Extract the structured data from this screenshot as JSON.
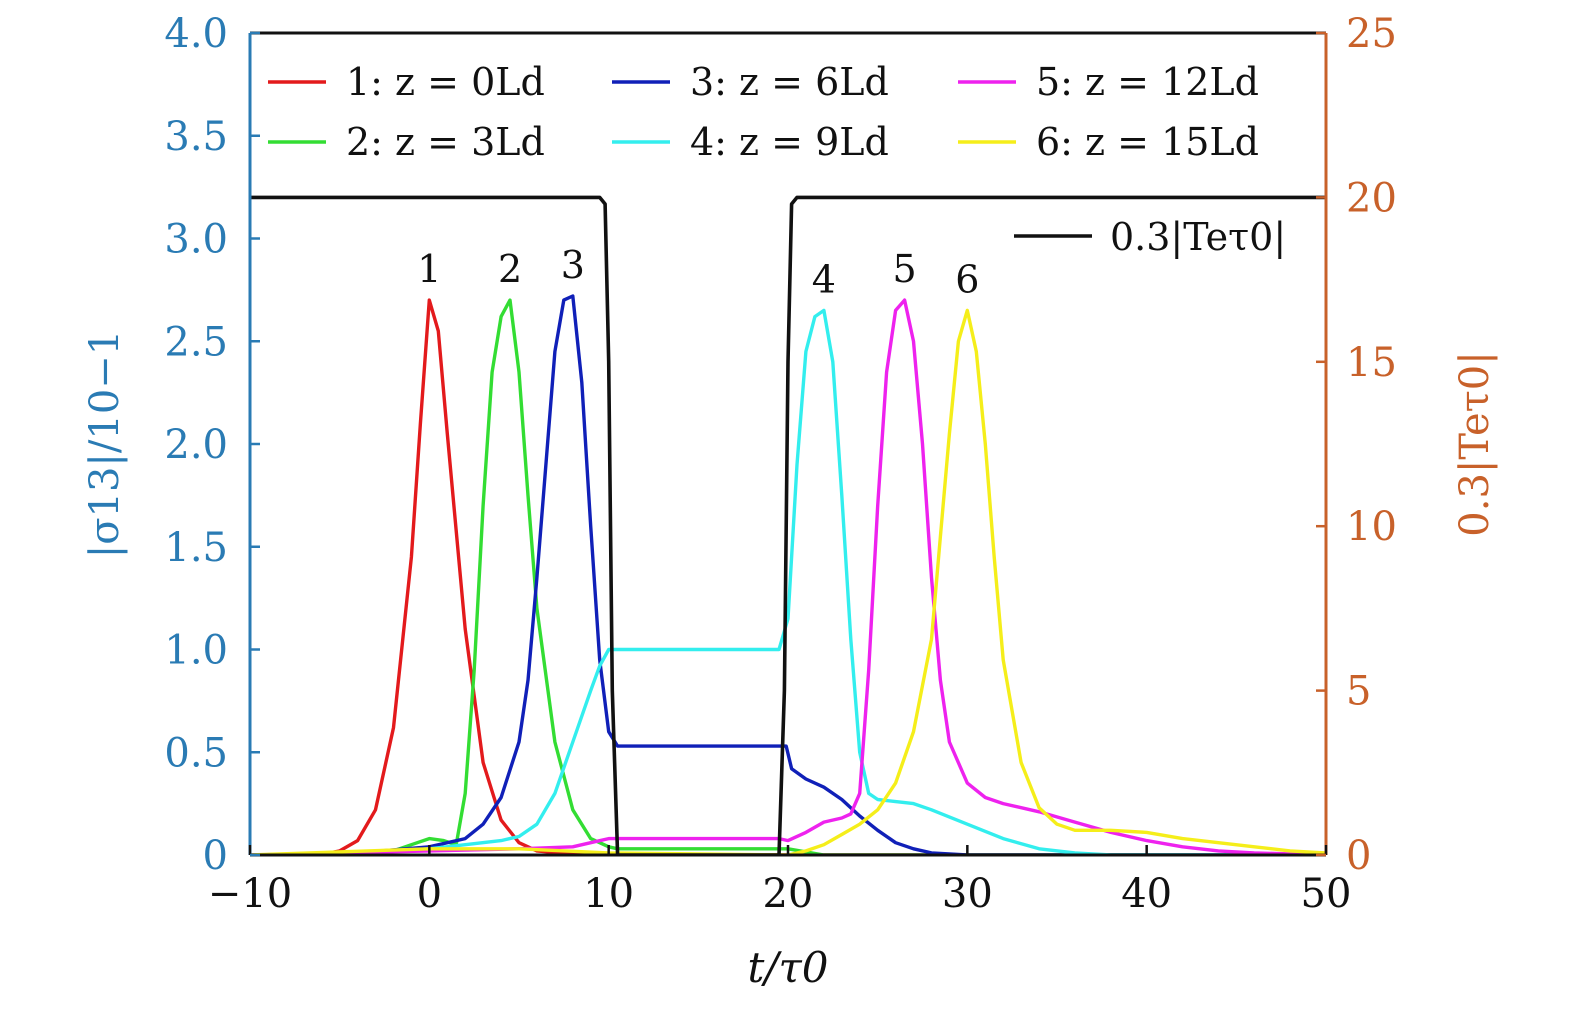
{
  "chart_data": {
    "type": "line",
    "x_axis": {
      "label": "t/τ0",
      "range": [
        -10,
        50
      ],
      "ticks": [
        -10,
        0,
        10,
        20,
        30,
        40,
        50
      ],
      "tick_labels": [
        "−10",
        "0",
        "10",
        "20",
        "30",
        "40",
        "50"
      ]
    },
    "y_axis_left": {
      "label": "|σ13|/10−1",
      "color": "#2a7bb4",
      "range": [
        0,
        4.0
      ],
      "ticks": [
        0,
        0.5,
        1.0,
        1.5,
        2.0,
        2.5,
        3.0,
        3.5,
        4.0
      ],
      "tick_labels": [
        "0",
        "0.5",
        "1.0",
        "1.5",
        "2.0",
        "2.5",
        "3.0",
        "3.5",
        "4.0"
      ]
    },
    "y_axis_right": {
      "label": "0.3|Teτ0|",
      "color": "#c8612a",
      "range": [
        0,
        25
      ],
      "ticks": [
        0,
        5,
        10,
        15,
        20,
        25
      ],
      "tick_labels": [
        "0",
        "5",
        "10",
        "15",
        "20",
        "25"
      ]
    },
    "series": [
      {
        "name": "1: z = 0Ld",
        "color": "#e31a1c",
        "peak_label": "1",
        "x": [
          -10,
          -6,
          -5,
          -4,
          -3,
          -2,
          -1,
          -0.5,
          0,
          0.5,
          1,
          2,
          3,
          4,
          5,
          6,
          8,
          10,
          15,
          20,
          30,
          50
        ],
        "y": [
          0,
          0.003,
          0.02,
          0.07,
          0.22,
          0.62,
          1.45,
          2.1,
          2.7,
          2.55,
          2.05,
          1.1,
          0.45,
          0.17,
          0.06,
          0.02,
          0.005,
          0,
          0,
          0,
          0,
          0
        ]
      },
      {
        "name": "2: z = 3Ld",
        "color": "#33dd33",
        "peak_label": "2",
        "x": [
          -10,
          -4,
          -2,
          -1,
          0,
          0.8,
          1.5,
          2,
          2.5,
          3,
          3.5,
          4,
          4.5,
          5,
          5.5,
          6,
          7,
          8,
          9,
          10,
          10.5,
          19.5,
          20,
          22,
          50
        ],
        "y": [
          0,
          0.005,
          0.02,
          0.05,
          0.08,
          0.07,
          0.05,
          0.3,
          0.9,
          1.7,
          2.35,
          2.62,
          2.7,
          2.35,
          1.75,
          1.2,
          0.55,
          0.22,
          0.08,
          0.04,
          0.03,
          0.03,
          0.03,
          0,
          0
        ]
      },
      {
        "name": "3: z = 6Ld",
        "color": "#1020b8",
        "peak_label": "3",
        "x": [
          -10,
          -4,
          0,
          2,
          3,
          4,
          5,
          5.5,
          6,
          6.5,
          7,
          7.5,
          8,
          8.5,
          9,
          9.5,
          10,
          10.5,
          19.9,
          20.2,
          21,
          22,
          23,
          24,
          25,
          26,
          27,
          28,
          30,
          50
        ],
        "y": [
          0,
          0.01,
          0.04,
          0.08,
          0.15,
          0.28,
          0.55,
          0.85,
          1.35,
          1.9,
          2.45,
          2.7,
          2.72,
          2.3,
          1.6,
          0.95,
          0.6,
          0.53,
          0.53,
          0.42,
          0.37,
          0.33,
          0.27,
          0.19,
          0.12,
          0.06,
          0.03,
          0.01,
          0,
          0
        ]
      },
      {
        "name": "4: z = 9Ld",
        "color": "#33eeee",
        "peak_label": "4",
        "x": [
          -10,
          -4,
          0,
          2,
          4,
          5,
          6,
          7,
          8,
          9,
          9.5,
          10,
          19.5,
          20,
          20.5,
          21,
          21.5,
          22,
          22.5,
          23,
          23.5,
          24,
          24.5,
          25,
          26,
          27,
          28,
          30,
          32,
          34,
          36,
          38,
          50
        ],
        "y": [
          0,
          0.01,
          0.03,
          0.05,
          0.07,
          0.09,
          0.15,
          0.3,
          0.55,
          0.8,
          0.92,
          1.0,
          1.0,
          1.15,
          1.9,
          2.45,
          2.62,
          2.65,
          2.4,
          1.75,
          1.05,
          0.5,
          0.3,
          0.27,
          0.26,
          0.25,
          0.22,
          0.15,
          0.08,
          0.03,
          0.01,
          0,
          0
        ]
      },
      {
        "name": "5: z = 12Ld",
        "color": "#ee22ee",
        "peak_label": "5",
        "x": [
          -10,
          0,
          5,
          8,
          9,
          10,
          19.5,
          20,
          21,
          22,
          23,
          23.5,
          24,
          24.5,
          25,
          25.5,
          26,
          26.5,
          27,
          27.5,
          28,
          28.5,
          29,
          30,
          31,
          32,
          34,
          36,
          38,
          40,
          42,
          44,
          46,
          50
        ],
        "y": [
          0,
          0.02,
          0.03,
          0.04,
          0.06,
          0.08,
          0.08,
          0.07,
          0.11,
          0.16,
          0.18,
          0.2,
          0.3,
          0.9,
          1.7,
          2.35,
          2.65,
          2.7,
          2.5,
          2.0,
          1.35,
          0.85,
          0.55,
          0.35,
          0.28,
          0.25,
          0.21,
          0.16,
          0.11,
          0.07,
          0.04,
          0.02,
          0.01,
          0
        ]
      },
      {
        "name": "6: z = 15Ld",
        "color": "#f5ee1a",
        "peak_label": "6",
        "x": [
          -10,
          0,
          5,
          10,
          20,
          21,
          22,
          23,
          24,
          25,
          26,
          27,
          28,
          28.5,
          29,
          29.5,
          30,
          30.5,
          31,
          31.5,
          32,
          33,
          34,
          35,
          36,
          38,
          40,
          42,
          44,
          46,
          48,
          50
        ],
        "y": [
          0,
          0.03,
          0.03,
          0.01,
          0.0,
          0.02,
          0.05,
          0.1,
          0.15,
          0.22,
          0.35,
          0.6,
          1.05,
          1.55,
          2.05,
          2.5,
          2.65,
          2.45,
          2.0,
          1.45,
          0.95,
          0.45,
          0.23,
          0.15,
          0.12,
          0.12,
          0.11,
          0.08,
          0.06,
          0.04,
          0.02,
          0.01
        ]
      },
      {
        "name": "0.3|Teτ0|",
        "color": "#111111",
        "axis": "right",
        "x": [
          -10,
          9.5,
          9.8,
          10.0,
          10.2,
          10.5,
          19.5,
          19.8,
          20.0,
          20.2,
          20.5,
          50
        ],
        "y": [
          20,
          20,
          19.8,
          15,
          5,
          0,
          0,
          5,
          15,
          19.8,
          20,
          20
        ]
      }
    ],
    "legend": {
      "position": "top",
      "entries": [
        {
          "label": "1: z = 0Ld",
          "color": "#e31a1c"
        },
        {
          "label": "3: z = 6Ld",
          "color": "#1020b8"
        },
        {
          "label": "5: z = 12Ld",
          "color": "#ee22ee"
        },
        {
          "label": "2: z = 3Ld",
          "color": "#33dd33"
        },
        {
          "label": "4: z = 9Ld",
          "color": "#33eeee"
        },
        {
          "label": "6: z = 15Ld",
          "color": "#f5ee1a"
        }
      ],
      "secondary_label": "0.3|Teτ0|"
    }
  }
}
